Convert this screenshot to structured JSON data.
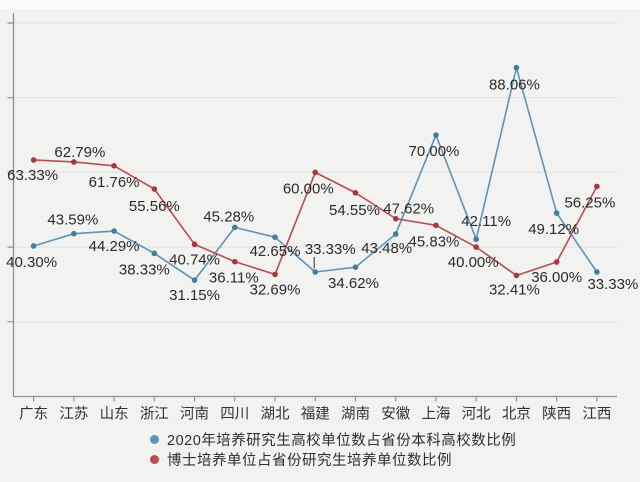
{
  "chart_data": {
    "type": "line",
    "categories": [
      "广东",
      "江苏",
      "山东",
      "浙江",
      "河南",
      "四川",
      "湖北",
      "福建",
      "湖南",
      "安徽",
      "上海",
      "河北",
      "北京",
      "陕西",
      "江西"
    ],
    "series": [
      {
        "name": "2020年培养研究生高校单位数占省份本科高校数比例",
        "color": "#5d94b8",
        "marker_color": "#417e9e",
        "values": [
          40.3,
          43.59,
          44.29,
          38.33,
          31.15,
          45.28,
          42.65,
          33.33,
          34.62,
          43.48,
          70.0,
          42.11,
          88.06,
          49.12,
          33.33
        ]
      },
      {
        "name": "博士培养单位占省份研究生培养单位数比例",
        "color": "#bf4a50",
        "marker_color": "#ab353d",
        "values": [
          63.33,
          62.79,
          61.76,
          55.56,
          40.74,
          36.11,
          32.69,
          60.0,
          54.55,
          47.62,
          45.83,
          40.0,
          32.41,
          36.0,
          56.25
        ]
      }
    ],
    "title": "",
    "xlabel": "",
    "ylabel": "",
    "ylim": [
      0,
      100
    ],
    "grid": true,
    "y_axis_tick_labels_visible": false,
    "data_label_format": "0.00%",
    "legend_position": "bottom-center",
    "label_offsets": [
      [
        [
          -2,
          21
        ],
        [
          -1,
          -9
        ],
        [
          0,
          20
        ],
        [
          -10,
          21
        ],
        [
          0,
          20
        ],
        [
          -6,
          -6
        ],
        [
          0,
          19
        ],
        [
          15,
          -18
        ],
        [
          -2,
          21
        ],
        [
          -9,
          19
        ],
        [
          -2,
          21
        ],
        [
          10,
          -13
        ],
        [
          -2,
          22
        ],
        [
          -3,
          21
        ],
        [
          16,
          17
        ]
      ],
      [
        [
          -1,
          20
        ],
        [
          6,
          -5
        ],
        [
          0,
          21
        ],
        [
          0,
          22
        ],
        [
          0,
          20
        ],
        [
          -1,
          21
        ],
        [
          0,
          20
        ],
        [
          -7,
          21
        ],
        [
          -1,
          22
        ],
        [
          13,
          -5
        ],
        [
          -2,
          21
        ],
        [
          -3,
          20
        ],
        [
          -2,
          19
        ],
        [
          0,
          20
        ],
        [
          -7,
          21
        ]
      ]
    ],
    "leader_line": {
      "series": 0,
      "index": 7
    }
  },
  "colors": {
    "background": "#f2f2f0",
    "gridline": "#e3e3e1",
    "axis": "#909090",
    "data_label_text": "#2b2b2b",
    "axis_label_text": "#333333"
  }
}
